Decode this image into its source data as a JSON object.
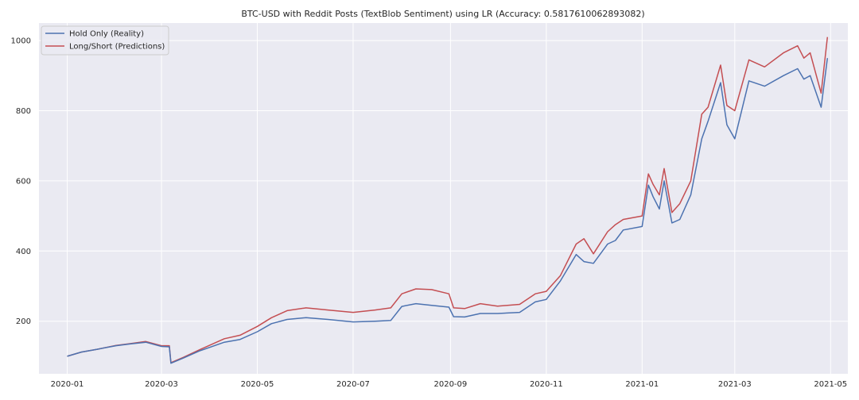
{
  "chart_data": {
    "type": "line",
    "title": "BTC-USD with Reddit Posts (TextBlob Sentiment) using LR (Accuracy: 0.5817610062893082)",
    "xlabel": "",
    "ylabel": "",
    "x_tick_labels": [
      "2020-01",
      "2020-03",
      "2020-05",
      "2020-07",
      "2020-09",
      "2020-11",
      "2021-01",
      "2021-03",
      "2021-05"
    ],
    "x_tick_dates": [
      "2020-01-01",
      "2020-03-01",
      "2020-05-01",
      "2020-07-01",
      "2020-09-01",
      "2020-11-01",
      "2021-01-01",
      "2021-03-01",
      "2021-05-01"
    ],
    "y_ticks": [
      200,
      400,
      600,
      800,
      1000
    ],
    "xlim": [
      "2019-12-14",
      "2021-05-12"
    ],
    "ylim": [
      50,
      1050
    ],
    "grid": true,
    "legend_position": "top-left",
    "series": [
      {
        "name": "Hold Only (Reality)",
        "color": "#4c72b0",
        "x": [
          "2020-01-01",
          "2020-01-10",
          "2020-01-20",
          "2020-02-01",
          "2020-02-10",
          "2020-02-20",
          "2020-03-01",
          "2020-03-06",
          "2020-03-07",
          "2020-03-15",
          "2020-03-25",
          "2020-04-10",
          "2020-04-20",
          "2020-05-01",
          "2020-05-10",
          "2020-05-20",
          "2020-06-01",
          "2020-06-15",
          "2020-07-01",
          "2020-07-15",
          "2020-07-25",
          "2020-08-01",
          "2020-08-10",
          "2020-08-20",
          "2020-08-31",
          "2020-09-03",
          "2020-09-10",
          "2020-09-20",
          "2020-10-01",
          "2020-10-15",
          "2020-10-25",
          "2020-11-01",
          "2020-11-10",
          "2020-11-20",
          "2020-11-25",
          "2020-12-01",
          "2020-12-10",
          "2020-12-15",
          "2020-12-20",
          "2021-01-01",
          "2021-01-05",
          "2021-01-08",
          "2021-01-12",
          "2021-01-15",
          "2021-01-20",
          "2021-01-25",
          "2021-02-01",
          "2021-02-08",
          "2021-02-12",
          "2021-02-20",
          "2021-02-24",
          "2021-03-01",
          "2021-03-10",
          "2021-03-20",
          "2021-04-01",
          "2021-04-10",
          "2021-04-14",
          "2021-04-18",
          "2021-04-25",
          "2021-04-29"
        ],
        "values": [
          100,
          112,
          120,
          130,
          135,
          140,
          128,
          127,
          80,
          95,
          115,
          140,
          148,
          170,
          193,
          205,
          210,
          205,
          198,
          200,
          202,
          242,
          250,
          245,
          240,
          213,
          212,
          222,
          222,
          225,
          255,
          262,
          315,
          390,
          370,
          365,
          420,
          430,
          460,
          470,
          588,
          555,
          520,
          600,
          480,
          490,
          560,
          720,
          770,
          880,
          760,
          720,
          885,
          870,
          900,
          920,
          890,
          900,
          810,
          950
        ]
      },
      {
        "name": "Long/Short (Predictions)",
        "color": "#c44e52",
        "x": [
          "2020-01-01",
          "2020-01-10",
          "2020-01-20",
          "2020-02-01",
          "2020-02-10",
          "2020-02-20",
          "2020-03-01",
          "2020-03-06",
          "2020-03-07",
          "2020-03-15",
          "2020-03-25",
          "2020-04-10",
          "2020-04-20",
          "2020-05-01",
          "2020-05-10",
          "2020-05-20",
          "2020-06-01",
          "2020-06-15",
          "2020-07-01",
          "2020-07-15",
          "2020-07-25",
          "2020-08-01",
          "2020-08-10",
          "2020-08-20",
          "2020-08-31",
          "2020-09-03",
          "2020-09-10",
          "2020-09-20",
          "2020-10-01",
          "2020-10-15",
          "2020-10-25",
          "2020-11-01",
          "2020-11-10",
          "2020-11-20",
          "2020-11-25",
          "2020-12-01",
          "2020-12-10",
          "2020-12-15",
          "2020-12-20",
          "2021-01-01",
          "2021-01-05",
          "2021-01-08",
          "2021-01-12",
          "2021-01-15",
          "2021-01-20",
          "2021-01-25",
          "2021-02-01",
          "2021-02-08",
          "2021-02-12",
          "2021-02-20",
          "2021-02-24",
          "2021-03-01",
          "2021-03-10",
          "2021-03-20",
          "2021-04-01",
          "2021-04-10",
          "2021-04-14",
          "2021-04-18",
          "2021-04-25",
          "2021-04-29"
        ],
        "values": [
          100,
          112,
          120,
          131,
          136,
          142,
          130,
          130,
          82,
          97,
          118,
          150,
          160,
          185,
          210,
          230,
          238,
          232,
          225,
          232,
          238,
          278,
          292,
          290,
          278,
          238,
          236,
          250,
          243,
          248,
          278,
          285,
          330,
          420,
          435,
          392,
          455,
          475,
          490,
          500,
          620,
          590,
          560,
          635,
          510,
          535,
          600,
          790,
          810,
          930,
          815,
          800,
          945,
          925,
          965,
          985,
          950,
          965,
          850,
          1010
        ]
      }
    ]
  }
}
